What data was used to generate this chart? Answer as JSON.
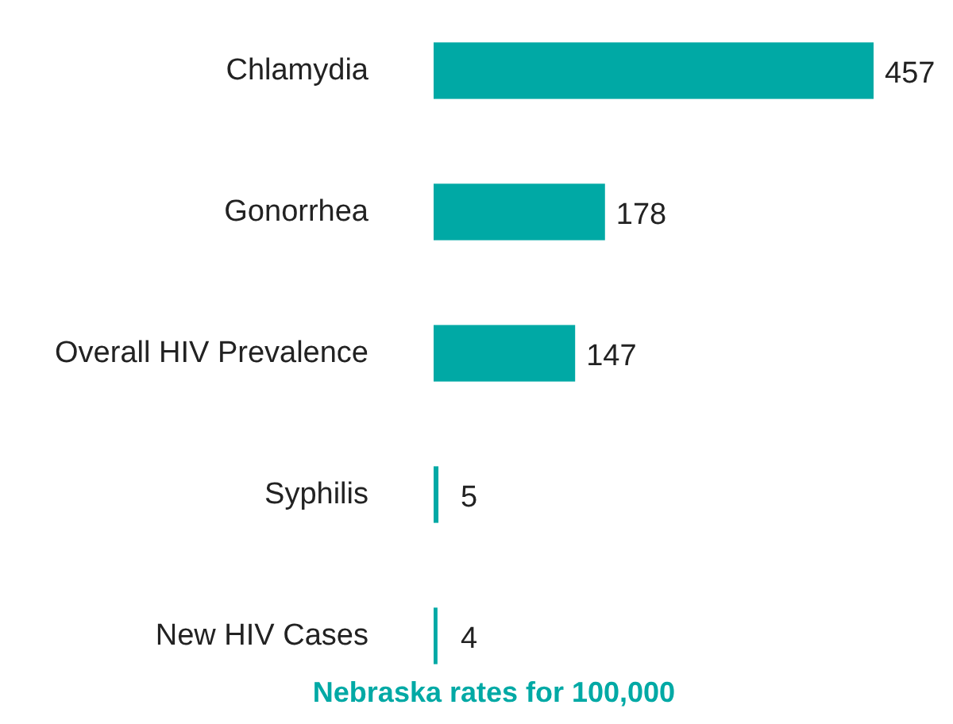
{
  "chart_data": {
    "type": "bar",
    "orientation": "horizontal",
    "xlabel": "Nebraska rates for 100,000",
    "categories": [
      "Chlamydia",
      "Gonorrhea",
      "Overall HIV Prevalence",
      "Syphilis",
      "New HIV Cases"
    ],
    "values": [
      457,
      178,
      147,
      5,
      4
    ],
    "color": "#00a9a5",
    "data_labels": true
  }
}
